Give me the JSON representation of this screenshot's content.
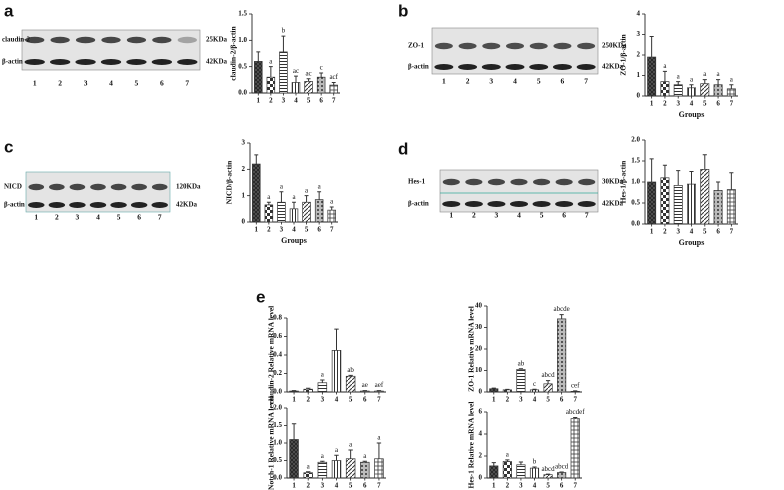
{
  "panel_labels": [
    "a",
    "b",
    "c",
    "d",
    "e"
  ],
  "blots": [
    {
      "target": "claudin-2",
      "control": "β-actin",
      "target_size": "25KDa",
      "control_size": "42KDa",
      "lanes": [
        "1",
        "2",
        "3",
        "4",
        "5",
        "6",
        "7"
      ]
    },
    {
      "target": "ZO-1",
      "control": "β-actin",
      "target_size": "250KDa",
      "control_size": "42KDa",
      "lanes": [
        "1",
        "2",
        "3",
        "4",
        "5",
        "6",
        "7"
      ]
    },
    {
      "target": "NICD",
      "control": "β-actin",
      "target_size": "120KDa",
      "control_size": "42KDa",
      "lanes": [
        "1",
        "2",
        "3",
        "4",
        "5",
        "6",
        "7"
      ]
    },
    {
      "target": "Hes-1",
      "control": "β-actin",
      "target_size": "30KDa",
      "control_size": "42KDa",
      "lanes": [
        "1",
        "2",
        "3",
        "4",
        "5",
        "6",
        "7"
      ]
    }
  ],
  "chart_data": [
    {
      "type": "bar",
      "ylabel": "claudin-2/β-actin",
      "categories": [
        "1",
        "2",
        "3",
        "4",
        "5",
        "6",
        "7"
      ],
      "values": [
        0.6,
        0.3,
        0.78,
        0.2,
        0.22,
        0.3,
        0.15
      ],
      "error": [
        0.18,
        0.2,
        0.3,
        0.12,
        0.05,
        0.08,
        0.05
      ],
      "annotations": [
        null,
        "a",
        "b",
        "ac",
        "ac",
        "c",
        "acf"
      ],
      "color": "#333333",
      "ylim": [
        0,
        1.5
      ],
      "yticks": [
        {
          "value": 0,
          "label": "0.0"
        },
        0.5,
        {
          "value": 1,
          "label": "1.0"
        },
        1.5
      ]
    },
    {
      "type": "bar",
      "ylabel": "ZO-1/β-actin",
      "xlabel": "Groups",
      "categories": [
        "1",
        "2",
        "3",
        "4",
        "5",
        "6",
        "7"
      ],
      "values": [
        1.9,
        0.7,
        0.55,
        0.4,
        0.6,
        0.55,
        0.35
      ],
      "error": [
        1.0,
        0.5,
        0.15,
        0.15,
        0.2,
        0.25,
        0.2
      ],
      "annotations": [
        null,
        "a",
        "a",
        "a",
        "a",
        "a",
        "a"
      ],
      "color": "#333333",
      "ylim": [
        0,
        4
      ],
      "yticks": [
        0,
        1,
        2,
        3,
        4
      ]
    },
    {
      "type": "bar",
      "ylabel": "NICD/β-actin",
      "xlabel": "Groups",
      "categories": [
        "1",
        "2",
        "3",
        "4",
        "5",
        "6",
        "7"
      ],
      "values": [
        2.2,
        0.65,
        0.75,
        0.5,
        0.75,
        0.85,
        0.45
      ],
      "error": [
        0.35,
        0.1,
        0.4,
        0.25,
        0.25,
        0.3,
        0.12
      ],
      "annotations": [
        null,
        "a",
        "a",
        "a",
        "a",
        "a",
        "a"
      ],
      "color": "#333333",
      "ylim": [
        0,
        3
      ],
      "yticks": [
        0,
        1,
        2,
        3
      ]
    },
    {
      "type": "bar",
      "ylabel": "Hes-1/β-actin",
      "xlabel": "Groups",
      "categories": [
        "1",
        "2",
        "3",
        "4",
        "5",
        "6",
        "7"
      ],
      "values": [
        1.0,
        1.1,
        0.92,
        0.95,
        1.3,
        0.8,
        0.82
      ],
      "error": [
        0.55,
        0.3,
        0.35,
        0.3,
        0.35,
        0.2,
        0.4
      ],
      "color": "#333333",
      "ylim": [
        0,
        2
      ],
      "yticks": [
        {
          "value": 0,
          "label": "0.0"
        },
        0.5,
        {
          "value": 1,
          "label": "1.0"
        },
        1.5,
        {
          "value": 2,
          "label": "2.0"
        }
      ]
    },
    {
      "type": "bar",
      "ylabel": "claudin-2 Relative mRNA level",
      "categories": [
        "1",
        "2",
        "3",
        "4",
        "5",
        "6",
        "7"
      ],
      "values": [
        0.01,
        0.03,
        0.1,
        0.45,
        0.17,
        0.01,
        0.01
      ],
      "error": [
        0.005,
        0.01,
        0.03,
        0.23,
        0.01,
        0.005,
        0.005
      ],
      "annotations": [
        null,
        null,
        "a",
        null,
        "ab",
        "ae",
        "aef"
      ],
      "color": "#333333",
      "ylim": [
        0,
        0.8
      ],
      "yticks": [
        {
          "value": 0,
          "label": "0.0"
        },
        0.2,
        0.4,
        0.6,
        0.8
      ]
    },
    {
      "type": "bar",
      "ylabel": "ZO-1 Relative mRNA level",
      "categories": [
        "1",
        "2",
        "3",
        "4",
        "5",
        "6",
        "7"
      ],
      "values": [
        1.5,
        1,
        10.5,
        1,
        3.8,
        34,
        0.3
      ],
      "error": [
        0.3,
        0.2,
        0.3,
        0.3,
        1.5,
        2,
        0.2
      ],
      "annotations": [
        null,
        null,
        "ab",
        "c",
        "abcd",
        "abcde",
        "cef"
      ],
      "color": "#333333",
      "ylim": [
        0,
        40
      ],
      "yticks": [
        0,
        10,
        20,
        30,
        40
      ]
    },
    {
      "type": "bar",
      "ylabel": "Notch-1 Relative mRNA level",
      "categories": [
        "1",
        "2",
        "3",
        "4",
        "5",
        "6",
        "7"
      ],
      "values": [
        1.1,
        0.15,
        0.45,
        0.5,
        0.55,
        0.45,
        0.55
      ],
      "error": [
        0.45,
        0.03,
        0.03,
        0.15,
        0.25,
        0.03,
        0.45
      ],
      "annotations": [
        null,
        "a",
        "a",
        "a",
        "a",
        "a",
        "a"
      ],
      "color": "#333333",
      "ylim": [
        0,
        2
      ],
      "yticks": [
        {
          "value": 0,
          "label": "0.0"
        },
        0.5,
        {
          "value": 1,
          "label": "1.0"
        },
        1.5,
        {
          "value": 2,
          "label": "2.0"
        }
      ]
    },
    {
      "type": "bar",
      "ylabel": "Hes-1 Relative mRNA level",
      "categories": [
        "1",
        "2",
        "3",
        "4",
        "5",
        "6",
        "7"
      ],
      "values": [
        1.1,
        1.5,
        1.2,
        0.9,
        0.3,
        0.5,
        5.4
      ],
      "error": [
        0.3,
        0.15,
        0.25,
        0.1,
        0.05,
        0.05,
        0.1
      ],
      "annotations": [
        null,
        "a",
        null,
        "b",
        "abcd",
        "abcd",
        "abcdef"
      ],
      "color": "#333333",
      "ylim": [
        0,
        6
      ],
      "yticks": [
        0,
        2,
        4,
        6
      ]
    }
  ]
}
